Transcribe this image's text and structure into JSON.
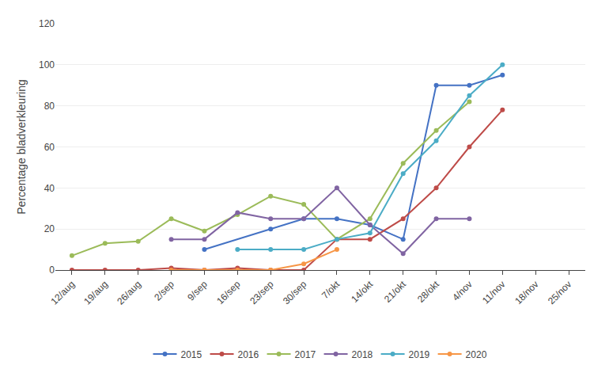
{
  "chart_data": {
    "type": "line",
    "ylabel": "Percentage bladverkleuring",
    "categories": [
      "12/aug",
      "19/aug",
      "26/aug",
      "2/sep",
      "9/sep",
      "16/sep",
      "23/sep",
      "30/sep",
      "7/okt",
      "14/okt",
      "21/okt",
      "28/okt",
      "4/nov",
      "11/nov",
      "18/nov",
      "25/nov"
    ],
    "series": [
      {
        "name": "2015",
        "color": "#4472C4",
        "values": [
          null,
          null,
          null,
          null,
          10,
          null,
          20,
          25,
          25,
          22,
          15,
          90,
          90,
          95,
          null,
          null
        ]
      },
      {
        "name": "2016",
        "color": "#BE4B48",
        "values": [
          0,
          0,
          0,
          1,
          0,
          1,
          0,
          0,
          15,
          15,
          25,
          40,
          60,
          78,
          null,
          null
        ]
      },
      {
        "name": "2017",
        "color": "#9BBB59",
        "values": [
          7,
          13,
          14,
          25,
          19,
          27,
          36,
          32,
          15,
          25,
          52,
          68,
          82,
          null,
          null,
          null
        ]
      },
      {
        "name": "2018",
        "color": "#8064A2",
        "values": [
          null,
          null,
          null,
          15,
          15,
          28,
          25,
          25,
          40,
          22,
          8,
          25,
          25,
          null,
          null,
          null
        ]
      },
      {
        "name": "2019",
        "color": "#4BACC6",
        "values": [
          null,
          null,
          null,
          null,
          null,
          10,
          10,
          10,
          15,
          18,
          47,
          63,
          85,
          100,
          null,
          null
        ]
      },
      {
        "name": "2020",
        "color": "#F79646",
        "values": [
          null,
          null,
          null,
          0,
          0,
          0,
          0,
          3,
          10,
          null,
          null,
          null,
          null,
          null,
          null,
          null
        ]
      }
    ],
    "ylim": [
      0,
      120
    ],
    "yticks": [
      0,
      20,
      40,
      60,
      80,
      100,
      120
    ],
    "grid": true,
    "legend": "bottom",
    "marker": "circle"
  }
}
